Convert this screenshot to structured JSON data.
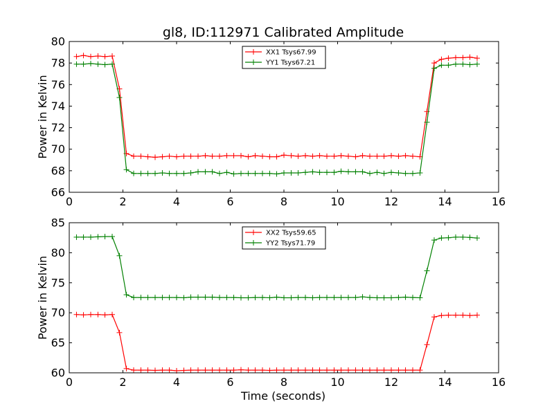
{
  "figure": {
    "title": "gl8, ID:112971 Calibrated Amplitude",
    "xlabel": "Time (seconds)"
  },
  "chart_data": [
    {
      "type": "line",
      "title": "gl8, ID:112971 Calibrated Amplitude",
      "xlabel": "",
      "ylabel": "Power in Kelvin",
      "xlim": [
        0,
        16
      ],
      "ylim": [
        66,
        80
      ],
      "xticks": [
        0,
        2,
        4,
        6,
        8,
        10,
        12,
        14,
        16
      ],
      "yticks": [
        66,
        68,
        70,
        72,
        74,
        76,
        78,
        80
      ],
      "legend_position": "top-center",
      "grid": false,
      "series": [
        {
          "name": "XX1 Tsys67.99",
          "color": "#ff0000",
          "x": [
            0.27,
            0.53,
            0.8,
            1.07,
            1.33,
            1.6,
            1.87,
            2.13,
            2.4,
            2.67,
            2.93,
            3.2,
            3.47,
            3.73,
            4.0,
            4.27,
            4.53,
            4.8,
            5.07,
            5.33,
            5.6,
            5.87,
            6.13,
            6.4,
            6.67,
            6.93,
            7.2,
            7.47,
            7.73,
            8.0,
            8.27,
            8.53,
            8.8,
            9.07,
            9.33,
            9.6,
            9.87,
            10.13,
            10.4,
            10.67,
            10.93,
            11.2,
            11.47,
            11.73,
            12.0,
            12.27,
            12.53,
            12.8,
            13.07,
            13.33,
            13.6,
            13.87,
            14.13,
            14.4,
            14.67,
            14.93,
            15.2
          ],
          "y": [
            78.6,
            78.7,
            78.6,
            78.65,
            78.6,
            78.65,
            75.6,
            69.6,
            69.35,
            69.35,
            69.3,
            69.25,
            69.3,
            69.35,
            69.3,
            69.35,
            69.35,
            69.35,
            69.4,
            69.35,
            69.35,
            69.4,
            69.4,
            69.4,
            69.3,
            69.4,
            69.35,
            69.3,
            69.3,
            69.45,
            69.4,
            69.35,
            69.4,
            69.35,
            69.4,
            69.35,
            69.35,
            69.4,
            69.35,
            69.3,
            69.4,
            69.35,
            69.35,
            69.35,
            69.4,
            69.35,
            69.4,
            69.35,
            69.3,
            73.5,
            78.0,
            78.35,
            78.45,
            78.5,
            78.5,
            78.55,
            78.45
          ]
        },
        {
          "name": "YY1 Tsys67.21",
          "color": "#008000",
          "x": [
            0.27,
            0.53,
            0.8,
            1.07,
            1.33,
            1.6,
            1.87,
            2.13,
            2.4,
            2.67,
            2.93,
            3.2,
            3.47,
            3.73,
            4.0,
            4.27,
            4.53,
            4.8,
            5.07,
            5.33,
            5.6,
            5.87,
            6.13,
            6.4,
            6.67,
            6.93,
            7.2,
            7.47,
            7.73,
            8.0,
            8.27,
            8.53,
            8.8,
            9.07,
            9.33,
            9.6,
            9.87,
            10.13,
            10.4,
            10.67,
            10.93,
            11.2,
            11.47,
            11.73,
            12.0,
            12.27,
            12.53,
            12.8,
            13.07,
            13.33,
            13.6,
            13.87,
            14.13,
            14.4,
            14.67,
            14.93,
            15.2
          ],
          "y": [
            77.9,
            77.9,
            77.95,
            77.9,
            77.85,
            77.9,
            74.8,
            68.1,
            67.75,
            67.75,
            67.75,
            67.75,
            67.8,
            67.75,
            67.75,
            67.75,
            67.8,
            67.9,
            67.9,
            67.9,
            67.75,
            67.85,
            67.7,
            67.75,
            67.75,
            67.75,
            67.75,
            67.75,
            67.7,
            67.8,
            67.8,
            67.8,
            67.85,
            67.9,
            67.85,
            67.85,
            67.85,
            67.95,
            67.9,
            67.9,
            67.9,
            67.75,
            67.85,
            67.75,
            67.85,
            67.8,
            67.75,
            67.75,
            67.8,
            72.5,
            77.5,
            77.8,
            77.8,
            77.9,
            77.9,
            77.85,
            77.9
          ]
        }
      ]
    },
    {
      "type": "line",
      "title": "",
      "xlabel": "Time (seconds)",
      "ylabel": "Power in Kelvin",
      "xlim": [
        0,
        16
      ],
      "ylim": [
        60,
        85
      ],
      "xticks": [
        0,
        2,
        4,
        6,
        8,
        10,
        12,
        14,
        16
      ],
      "yticks": [
        60,
        65,
        70,
        75,
        80,
        85
      ],
      "legend_position": "top-center",
      "grid": false,
      "series": [
        {
          "name": "XX2 Tsys59.65",
          "color": "#ff0000",
          "x": [
            0.27,
            0.53,
            0.8,
            1.07,
            1.33,
            1.6,
            1.87,
            2.13,
            2.4,
            2.67,
            2.93,
            3.2,
            3.47,
            3.73,
            4.0,
            4.27,
            4.53,
            4.8,
            5.07,
            5.33,
            5.6,
            5.87,
            6.13,
            6.4,
            6.67,
            6.93,
            7.2,
            7.47,
            7.73,
            8.0,
            8.27,
            8.53,
            8.8,
            9.07,
            9.33,
            9.6,
            9.87,
            10.13,
            10.4,
            10.67,
            10.93,
            11.2,
            11.47,
            11.73,
            12.0,
            12.27,
            12.53,
            12.8,
            13.07,
            13.33,
            13.6,
            13.87,
            14.13,
            14.4,
            14.67,
            14.93,
            15.2
          ],
          "y": [
            69.7,
            69.65,
            69.7,
            69.7,
            69.65,
            69.7,
            66.7,
            60.7,
            60.45,
            60.45,
            60.45,
            60.4,
            60.45,
            60.45,
            60.35,
            60.4,
            60.45,
            60.45,
            60.45,
            60.45,
            60.45,
            60.45,
            60.45,
            60.5,
            60.45,
            60.45,
            60.45,
            60.4,
            60.45,
            60.45,
            60.45,
            60.45,
            60.45,
            60.45,
            60.45,
            60.45,
            60.45,
            60.45,
            60.45,
            60.45,
            60.45,
            60.45,
            60.45,
            60.45,
            60.45,
            60.45,
            60.45,
            60.45,
            60.45,
            64.7,
            69.3,
            69.55,
            69.6,
            69.6,
            69.6,
            69.55,
            69.6
          ]
        },
        {
          "name": "YY2 Tsys71.79",
          "color": "#008000",
          "x": [
            0.27,
            0.53,
            0.8,
            1.07,
            1.33,
            1.6,
            1.87,
            2.13,
            2.4,
            2.67,
            2.93,
            3.2,
            3.47,
            3.73,
            4.0,
            4.27,
            4.53,
            4.8,
            5.07,
            5.33,
            5.6,
            5.87,
            6.13,
            6.4,
            6.67,
            6.93,
            7.2,
            7.47,
            7.73,
            8.0,
            8.27,
            8.53,
            8.8,
            9.07,
            9.33,
            9.6,
            9.87,
            10.13,
            10.4,
            10.67,
            10.93,
            11.2,
            11.47,
            11.73,
            12.0,
            12.27,
            12.53,
            12.8,
            13.07,
            13.33,
            13.6,
            13.87,
            14.13,
            14.4,
            14.67,
            14.93,
            15.2
          ],
          "y": [
            82.6,
            82.6,
            82.6,
            82.65,
            82.7,
            82.7,
            79.5,
            73.0,
            72.55,
            72.55,
            72.55,
            72.55,
            72.55,
            72.55,
            72.55,
            72.5,
            72.6,
            72.6,
            72.6,
            72.6,
            72.55,
            72.55,
            72.55,
            72.5,
            72.5,
            72.55,
            72.55,
            72.5,
            72.6,
            72.5,
            72.5,
            72.55,
            72.55,
            72.5,
            72.55,
            72.55,
            72.55,
            72.55,
            72.55,
            72.55,
            72.65,
            72.55,
            72.5,
            72.5,
            72.5,
            72.55,
            72.6,
            72.55,
            72.5,
            77.0,
            82.1,
            82.45,
            82.5,
            82.6,
            82.6,
            82.55,
            82.45
          ]
        }
      ]
    }
  ]
}
